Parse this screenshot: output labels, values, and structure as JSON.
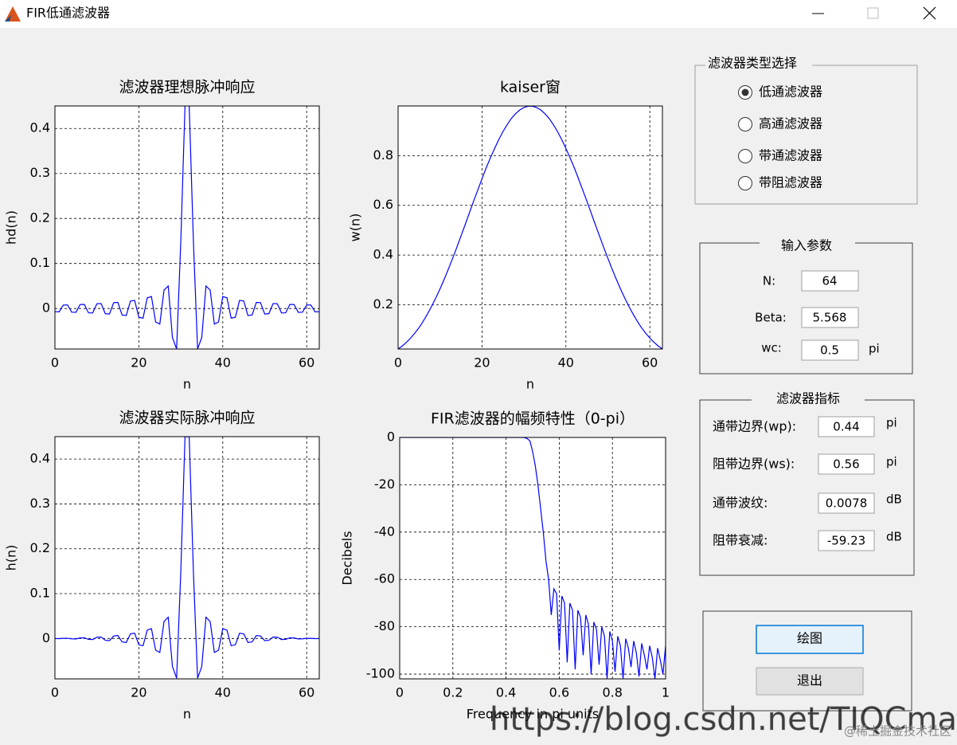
{
  "window": {
    "title": "FIR低通滤波器"
  },
  "chart_data": [
    {
      "type": "line",
      "title": "滤波器理想脉冲响应",
      "xlabel": "n",
      "ylabel": "hd(n)",
      "color": "#0000ff",
      "grid": true,
      "x": [
        0,
        1,
        2,
        3,
        4,
        5,
        6,
        7,
        8,
        9,
        10,
        11,
        12,
        13,
        14,
        15,
        16,
        17,
        18,
        19,
        20,
        21,
        22,
        23,
        24,
        25,
        26,
        27,
        28,
        29,
        30,
        31,
        32,
        33,
        34,
        35,
        36,
        37,
        38,
        39,
        40,
        41,
        42,
        43,
        44,
        45,
        46,
        47,
        48,
        49,
        50,
        51,
        52,
        53,
        54,
        55,
        56,
        57,
        58,
        59,
        60,
        61,
        62,
        63
      ],
      "values": [
        -0.0071,
        -0.0074,
        0.0076,
        0.0079,
        -0.0082,
        -0.0085,
        0.0088,
        0.0092,
        -0.0096,
        -0.01,
        0.0105,
        0.011,
        -0.0115,
        -0.0122,
        0.0129,
        0.0136,
        -0.0145,
        -0.0155,
        0.0167,
        0.018,
        -0.0196,
        -0.0214,
        0.0237,
        0.0265,
        -0.03,
        -0.0346,
        0.0409,
        0.05,
        -0.0643,
        -0.09,
        0.1501,
        0.4502,
        0.4502,
        0.1501,
        -0.09,
        -0.0643,
        0.05,
        0.0409,
        -0.0346,
        -0.03,
        0.0265,
        0.0237,
        -0.0214,
        -0.0196,
        0.018,
        0.0167,
        -0.0155,
        -0.0145,
        0.0136,
        0.0129,
        -0.0122,
        -0.0115,
        0.011,
        0.0105,
        -0.01,
        -0.0096,
        0.0092,
        0.0088,
        -0.0085,
        -0.0082,
        0.0079,
        0.0076,
        -0.0074,
        -0.0071
      ],
      "xlim": [
        0,
        63
      ],
      "ylim": [
        -0.09,
        0.45
      ],
      "xticks": [
        0,
        20,
        40,
        60
      ],
      "yticks": [
        0,
        0.1,
        0.2,
        0.3,
        0.4
      ]
    },
    {
      "type": "line",
      "title": "kaiser窗",
      "xlabel": "n",
      "ylabel": "w(n)",
      "color": "#0000ff",
      "grid": true,
      "x": [
        0,
        1,
        2,
        3,
        4,
        5,
        6,
        7,
        8,
        9,
        10,
        11,
        12,
        13,
        14,
        15,
        16,
        17,
        18,
        19,
        20,
        21,
        22,
        23,
        24,
        25,
        26,
        27,
        28,
        29,
        30,
        31,
        32,
        33,
        34,
        35,
        36,
        37,
        38,
        39,
        40,
        41,
        42,
        43,
        44,
        45,
        46,
        47,
        48,
        49,
        50,
        51,
        52,
        53,
        54,
        55,
        56,
        57,
        58,
        59,
        60,
        61,
        62,
        63
      ],
      "values": [
        0.022,
        0.034,
        0.049,
        0.066,
        0.086,
        0.108,
        0.134,
        0.163,
        0.194,
        0.228,
        0.264,
        0.303,
        0.344,
        0.387,
        0.431,
        0.477,
        0.523,
        0.57,
        0.617,
        0.662,
        0.707,
        0.751,
        0.791,
        0.829,
        0.865,
        0.897,
        0.925,
        0.95,
        0.969,
        0.984,
        0.994,
        0.999,
        0.999,
        0.994,
        0.984,
        0.969,
        0.95,
        0.925,
        0.897,
        0.865,
        0.829,
        0.791,
        0.751,
        0.707,
        0.662,
        0.617,
        0.57,
        0.523,
        0.477,
        0.431,
        0.387,
        0.344,
        0.303,
        0.264,
        0.228,
        0.194,
        0.163,
        0.134,
        0.108,
        0.086,
        0.066,
        0.049,
        0.034,
        0.022
      ],
      "xlim": [
        0,
        63
      ],
      "ylim": [
        0.022,
        1
      ],
      "xticks": [
        0,
        20,
        40,
        60
      ],
      "yticks": [
        0.2,
        0.4,
        0.6,
        0.8
      ]
    },
    {
      "type": "line",
      "title": "滤波器实际脉冲响应",
      "xlabel": "n",
      "ylabel": "h(n)",
      "color": "#0000ff",
      "grid": true,
      "x": [
        0,
        1,
        2,
        3,
        4,
        5,
        6,
        7,
        8,
        9,
        10,
        11,
        12,
        13,
        14,
        15,
        16,
        17,
        18,
        19,
        20,
        21,
        22,
        23,
        24,
        25,
        26,
        27,
        28,
        29,
        30,
        31,
        32,
        33,
        34,
        35,
        36,
        37,
        38,
        39,
        40,
        41,
        42,
        43,
        44,
        45,
        46,
        47,
        48,
        49,
        50,
        51,
        52,
        53,
        54,
        55,
        56,
        57,
        58,
        59,
        60,
        61,
        62,
        63
      ],
      "values": [
        -0.0002,
        -0.0003,
        0.0004,
        0.0005,
        -0.0007,
        -0.0009,
        0.0012,
        0.0015,
        -0.0019,
        -0.0023,
        0.0028,
        0.0033,
        -0.004,
        -0.0047,
        0.0056,
        0.0065,
        -0.0076,
        -0.0088,
        0.0103,
        0.0119,
        -0.0139,
        -0.0161,
        0.0187,
        0.022,
        -0.026,
        -0.031,
        0.0378,
        0.0475,
        -0.0623,
        -0.0886,
        0.1492,
        0.4497,
        0.4497,
        0.1492,
        -0.0886,
        -0.0623,
        0.0475,
        0.0378,
        -0.031,
        -0.026,
        0.022,
        0.0187,
        -0.0161,
        -0.0139,
        0.0119,
        0.0103,
        -0.0088,
        -0.0076,
        0.0065,
        0.0056,
        -0.0047,
        -0.004,
        0.0033,
        0.0028,
        -0.0023,
        -0.0019,
        0.0015,
        0.0012,
        -0.0009,
        -0.0007,
        0.0005,
        0.0004,
        -0.0003,
        -0.0002
      ],
      "xlim": [
        0,
        63
      ],
      "ylim": [
        -0.09,
        0.45
      ],
      "xticks": [
        0,
        20,
        40,
        60
      ],
      "yticks": [
        0,
        0.1,
        0.2,
        0.3,
        0.4
      ]
    },
    {
      "type": "line",
      "title": "FIR滤波器的幅频特性（0-pi）",
      "xlabel": "Frequency in pi units",
      "ylabel": "Decibels",
      "color": "#0000ff",
      "grid": true,
      "x": [
        0,
        0.01,
        0.02,
        0.03,
        0.04,
        0.05,
        0.06,
        0.07,
        0.08,
        0.09,
        0.1,
        0.11,
        0.12,
        0.13,
        0.14,
        0.15,
        0.16,
        0.17,
        0.18,
        0.19,
        0.2,
        0.21,
        0.22,
        0.23,
        0.24,
        0.25,
        0.26,
        0.27,
        0.28,
        0.29,
        0.3,
        0.31,
        0.32,
        0.33,
        0.34,
        0.35,
        0.36,
        0.37,
        0.38,
        0.39,
        0.4,
        0.41,
        0.42,
        0.43,
        0.44,
        0.45,
        0.46,
        0.47,
        0.48,
        0.49,
        0.5,
        0.51,
        0.52,
        0.53,
        0.54,
        0.55,
        0.56,
        0.57,
        0.58,
        0.59,
        0.6,
        0.61,
        0.62,
        0.63,
        0.64,
        0.65,
        0.66,
        0.67,
        0.68,
        0.69,
        0.7,
        0.71,
        0.72,
        0.73,
        0.74,
        0.75,
        0.76,
        0.77,
        0.78,
        0.79,
        0.8,
        0.81,
        0.82,
        0.83,
        0.84,
        0.85,
        0.86,
        0.87,
        0.88,
        0.89,
        0.9,
        0.91,
        0.92,
        0.93,
        0.94,
        0.95,
        0.96,
        0.97,
        0.98,
        0.99,
        1
      ],
      "values": [
        0,
        0,
        0,
        0,
        0,
        0,
        0,
        0,
        0,
        0,
        0,
        0,
        0,
        0,
        0,
        0,
        0,
        0,
        0,
        0,
        0,
        0,
        0,
        0,
        0,
        0,
        0,
        0,
        0,
        0,
        0,
        0,
        0,
        0,
        0,
        0,
        0,
        0,
        0,
        0,
        0,
        0,
        0,
        0,
        0,
        0,
        0,
        -0.1,
        -0.5,
        -1.5,
        -6,
        -12,
        -20,
        -30,
        -40,
        -52,
        -60,
        -75,
        -64,
        -66,
        -90,
        -67,
        -70,
        -95,
        -70,
        -73,
        -98,
        -73,
        -76,
        -92,
        -75,
        -79,
        -100,
        -78,
        -81,
        -96,
        -80,
        -84,
        -102,
        -82,
        -86,
        -99,
        -84,
        -88,
        -102,
        -85,
        -89,
        -97,
        -86,
        -91,
        -101,
        -87,
        -92,
        -98,
        -88,
        -93,
        -102,
        -89,
        -94,
        -100,
        -88
      ],
      "xlim": [
        0,
        1
      ],
      "ylim": [
        -102,
        0
      ],
      "xticks": [
        0,
        0.2,
        0.4,
        0.6,
        0.8,
        1
      ],
      "yticks": [
        0,
        -20,
        -40,
        -60,
        -80,
        -100
      ]
    }
  ],
  "filter_type_panel": {
    "title": "滤波器类型选择",
    "options": [
      {
        "label": "低通滤波器",
        "selected": true
      },
      {
        "label": "高通滤波器",
        "selected": false
      },
      {
        "label": "带通滤波器",
        "selected": false
      },
      {
        "label": "带阻滤波器",
        "selected": false
      }
    ]
  },
  "input_panel": {
    "title": "输入参数",
    "fields": [
      {
        "label": "N:",
        "value": "64"
      },
      {
        "label": "Beta:",
        "value": "5.568"
      },
      {
        "label": "wc:",
        "value": "0.5",
        "unit": "pi"
      }
    ]
  },
  "spec_panel": {
    "title": "滤波器指标",
    "fields": [
      {
        "label": "通带边界(wp):",
        "value": "0.44",
        "unit": "pi"
      },
      {
        "label": "阻带边界(ws):",
        "value": "0.56",
        "unit": "pi"
      },
      {
        "label": "通带波纹:",
        "value": "0.0078",
        "unit": "dB"
      },
      {
        "label": "阻带衰减:",
        "value": "-59.23",
        "unit": "dB"
      }
    ]
  },
  "buttons": [
    "绘图",
    "退出"
  ],
  "watermarks": [
    "https://blog.csdn.net/TIQCmatlab",
    "@稀土掘金技术社区"
  ]
}
